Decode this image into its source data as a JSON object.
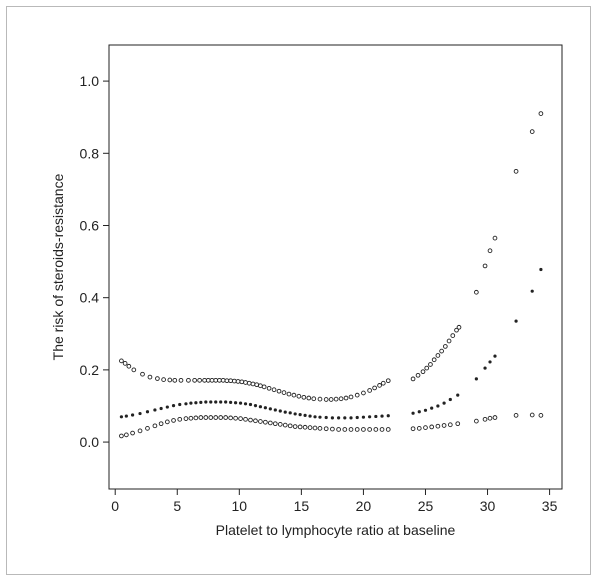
{
  "chart_data": {
    "type": "scatter",
    "xlabel": "Platelet to lymphocyte ratio at baseline",
    "ylabel": "The risk of steroids-resistance",
    "xlim": [
      -0.5,
      36.0
    ],
    "ylim": [
      -0.13,
      1.1
    ],
    "x_ticks": [
      0,
      5,
      10,
      15,
      20,
      25,
      30,
      35
    ],
    "y_ticks": [
      0.0,
      0.2,
      0.4,
      0.6,
      0.8,
      1.0
    ],
    "y_tick_labels": [
      "0.0",
      "0.2",
      "0.4",
      "0.6",
      "0.8",
      "1.0"
    ],
    "grid": false,
    "legend": "none",
    "series": [
      {
        "marker": "open-circle",
        "x": [
          0.5,
          0.8,
          1.1,
          1.5,
          2.2,
          2.8,
          3.4,
          3.9,
          4.4,
          4.8,
          5.3,
          5.9,
          6.4,
          6.8,
          7.2,
          7.5,
          7.8,
          8.1,
          8.4,
          8.7,
          9.0,
          9.3,
          9.6,
          9.9,
          10.2,
          10.5,
          10.8,
          11.1,
          11.4,
          11.7,
          12.0,
          12.4,
          12.8,
          13.2,
          13.6,
          14.0,
          14.4,
          14.8,
          15.2,
          15.6,
          16.0,
          16.5,
          17.0,
          17.4,
          17.8,
          18.2,
          18.6,
          19.0,
          19.5,
          20.0,
          20.5,
          20.9,
          21.3,
          21.6,
          22.0,
          24.0,
          24.4,
          24.8,
          25.1,
          25.4,
          25.7,
          26.0,
          26.3,
          26.6,
          26.9,
          27.2,
          27.5,
          27.7,
          29.1,
          29.8,
          30.2,
          30.6,
          32.3,
          33.6,
          34.3
        ],
        "y": [
          0.225,
          0.218,
          0.21,
          0.2,
          0.188,
          0.18,
          0.176,
          0.173,
          0.172,
          0.171,
          0.171,
          0.171,
          0.171,
          0.171,
          0.171,
          0.171,
          0.171,
          0.171,
          0.171,
          0.171,
          0.17,
          0.17,
          0.169,
          0.168,
          0.167,
          0.165,
          0.163,
          0.161,
          0.159,
          0.156,
          0.153,
          0.149,
          0.145,
          0.141,
          0.137,
          0.133,
          0.13,
          0.127,
          0.124,
          0.122,
          0.12,
          0.119,
          0.118,
          0.118,
          0.119,
          0.12,
          0.122,
          0.125,
          0.13,
          0.136,
          0.143,
          0.15,
          0.157,
          0.163,
          0.17,
          0.175,
          0.185,
          0.195,
          0.205,
          0.215,
          0.228,
          0.24,
          0.252,
          0.265,
          0.28,
          0.295,
          0.31,
          0.318,
          0.415,
          0.488,
          0.53,
          0.565,
          0.75,
          0.86,
          0.91
        ]
      },
      {
        "marker": "filled-dot",
        "x": [
          0.5,
          0.9,
          1.4,
          2.0,
          2.6,
          3.2,
          3.7,
          4.2,
          4.7,
          5.2,
          5.7,
          6.1,
          6.5,
          6.9,
          7.3,
          7.7,
          8.1,
          8.5,
          8.9,
          9.3,
          9.7,
          10.1,
          10.5,
          10.9,
          11.3,
          11.7,
          12.1,
          12.5,
          12.9,
          13.3,
          13.7,
          14.1,
          14.5,
          14.9,
          15.3,
          15.7,
          16.1,
          16.5,
          17.0,
          17.5,
          18.0,
          18.5,
          19.0,
          19.5,
          20.0,
          20.5,
          21.0,
          21.5,
          22.0,
          24.0,
          24.5,
          25.0,
          25.5,
          26.0,
          26.5,
          27.0,
          27.6,
          29.1,
          29.8,
          30.2,
          30.6,
          32.3,
          33.6,
          34.3
        ],
        "y": [
          0.07,
          0.072,
          0.075,
          0.079,
          0.084,
          0.089,
          0.093,
          0.097,
          0.101,
          0.104,
          0.106,
          0.108,
          0.109,
          0.11,
          0.111,
          0.111,
          0.111,
          0.111,
          0.111,
          0.11,
          0.109,
          0.108,
          0.106,
          0.104,
          0.101,
          0.098,
          0.095,
          0.092,
          0.089,
          0.086,
          0.083,
          0.081,
          0.078,
          0.076,
          0.074,
          0.072,
          0.07,
          0.069,
          0.068,
          0.067,
          0.067,
          0.067,
          0.067,
          0.068,
          0.069,
          0.07,
          0.071,
          0.072,
          0.073,
          0.08,
          0.084,
          0.088,
          0.094,
          0.1,
          0.108,
          0.118,
          0.13,
          0.175,
          0.205,
          0.222,
          0.238,
          0.335,
          0.418,
          0.478
        ]
      },
      {
        "marker": "open-circle",
        "x": [
          0.5,
          0.9,
          1.4,
          2.0,
          2.6,
          3.2,
          3.7,
          4.2,
          4.7,
          5.2,
          5.7,
          6.1,
          6.5,
          6.9,
          7.3,
          7.7,
          8.1,
          8.5,
          8.9,
          9.3,
          9.7,
          10.1,
          10.5,
          10.9,
          11.3,
          11.7,
          12.1,
          12.5,
          12.9,
          13.3,
          13.7,
          14.1,
          14.5,
          14.9,
          15.3,
          15.7,
          16.1,
          16.5,
          17.0,
          17.5,
          18.0,
          18.5,
          19.0,
          19.5,
          20.0,
          20.5,
          21.0,
          21.5,
          22.0,
          24.0,
          24.5,
          25.0,
          25.5,
          26.0,
          26.5,
          27.0,
          27.6,
          29.1,
          29.8,
          30.2,
          30.6,
          32.3,
          33.6,
          34.3
        ],
        "y": [
          0.017,
          0.02,
          0.025,
          0.031,
          0.038,
          0.045,
          0.051,
          0.056,
          0.06,
          0.063,
          0.065,
          0.066,
          0.067,
          0.068,
          0.068,
          0.068,
          0.068,
          0.068,
          0.068,
          0.067,
          0.066,
          0.065,
          0.063,
          0.061,
          0.059,
          0.057,
          0.055,
          0.053,
          0.051,
          0.049,
          0.047,
          0.045,
          0.043,
          0.042,
          0.041,
          0.04,
          0.039,
          0.038,
          0.037,
          0.036,
          0.035,
          0.035,
          0.035,
          0.035,
          0.035,
          0.035,
          0.035,
          0.035,
          0.035,
          0.037,
          0.038,
          0.04,
          0.042,
          0.044,
          0.046,
          0.048,
          0.051,
          0.058,
          0.063,
          0.066,
          0.068,
          0.074,
          0.075,
          0.074
        ]
      }
    ]
  }
}
